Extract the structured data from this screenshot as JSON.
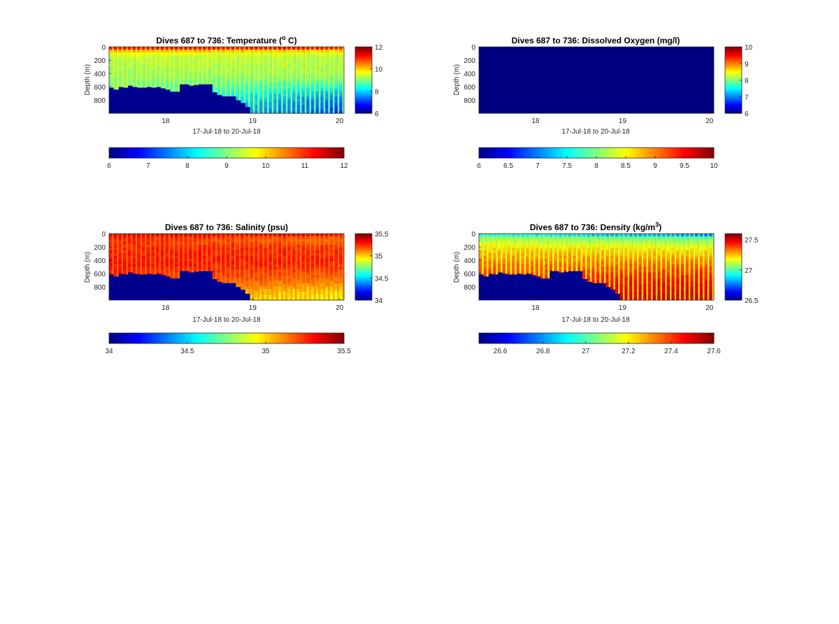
{
  "figure": {
    "colormap": "jet",
    "bottom_color": "#00008f"
  },
  "chart_data": [
    {
      "id": "temperature",
      "type": "heatmap",
      "title": "Dives 687 to 736: Temperature (° C)",
      "title_parts": [
        "Dives 687 to 736: Temperature (",
        "o",
        " C)"
      ],
      "xlabel": "17-Jul-18 to 20-Jul-18",
      "ylabel": "Depth (m)",
      "xlim": [
        17.35,
        20.05
      ],
      "ylim": [
        0,
        1000
      ],
      "y_reversed": true,
      "xticks": [
        18,
        19,
        20
      ],
      "xtick_labels": [
        "18",
        "19",
        "20"
      ],
      "yticks": [
        0,
        200,
        400,
        600,
        800
      ],
      "ytick_labels": [
        "0",
        "200",
        "400",
        "600",
        "800"
      ],
      "clim": [
        6,
        12
      ],
      "colorbar": {
        "ticks": [
          6,
          8,
          10,
          12
        ],
        "tick_labels": [
          "6",
          "8",
          "10",
          "12"
        ],
        "h_ticks": [
          6,
          7,
          8,
          9,
          10,
          11,
          12
        ],
        "h_tick_labels": [
          "6",
          "7",
          "8",
          "9",
          "10",
          "11",
          "12"
        ]
      },
      "n_dives": 50,
      "bottom_depth_m": [
        610,
        640,
        600,
        610,
        580,
        600,
        610,
        610,
        600,
        610,
        600,
        620,
        640,
        670,
        670,
        560,
        560,
        580,
        570,
        560,
        560,
        560,
        680,
        720,
        740,
        740,
        740,
        800,
        840,
        900,
        1000,
        1000,
        1000,
        1000,
        1000,
        1000,
        1000,
        1000,
        1000,
        1000,
        1000,
        1000,
        1000,
        1000,
        1000,
        1000,
        1000,
        1000,
        1000,
        1000
      ],
      "profile": {
        "depth_m": [
          0,
          25,
          50,
          100,
          150,
          200,
          300,
          400,
          500,
          600,
          700,
          800,
          900,
          1000
        ],
        "value_early": [
          11.6,
          11.2,
          10.4,
          9.7,
          9.4,
          9.3,
          9.2,
          9.1,
          9.0,
          9.0,
          8.9,
          8.8,
          8.7,
          8.7
        ],
        "value_late": [
          11.6,
          11.1,
          10.2,
          9.5,
          9.3,
          9.2,
          9.2,
          9.1,
          8.8,
          8.3,
          7.8,
          7.4,
          7.2,
          7.0
        ]
      },
      "gap_value": 9.7
    },
    {
      "id": "oxygen",
      "type": "heatmap",
      "title": "Dives 687 to 736: Dissolved Oxygen (mg/l)",
      "title_parts": [
        "Dives 687 to 736: Dissolved Oxygen (mg/l)"
      ],
      "xlabel": "17-Jul-18 to 20-Jul-18",
      "ylabel": "Depth (m)",
      "xlim": [
        17.35,
        20.05
      ],
      "ylim": [
        0,
        1000
      ],
      "y_reversed": true,
      "xticks": [
        18,
        19,
        20
      ],
      "xtick_labels": [
        "18",
        "19",
        "20"
      ],
      "yticks": [
        0,
        200,
        400,
        600,
        800
      ],
      "ytick_labels": [
        "0",
        "200",
        "400",
        "600",
        "800"
      ],
      "clim": [
        6,
        10
      ],
      "colorbar": {
        "ticks": [
          6,
          7,
          8,
          9,
          10
        ],
        "tick_labels": [
          "6",
          "7",
          "8",
          "9",
          "10"
        ],
        "h_ticks": [
          6,
          6.5,
          7,
          7.5,
          8,
          8.5,
          9,
          9.5,
          10
        ],
        "h_tick_labels": [
          "6",
          "6.5",
          "7",
          "7.5",
          "8",
          "8.5",
          "9",
          "9.5",
          "10"
        ]
      },
      "uniform_value": 6
    },
    {
      "id": "salinity",
      "type": "heatmap",
      "title": "Dives 687 to 736: Salinity (psu)",
      "title_parts": [
        "Dives 687 to 736: Salinity (psu)"
      ],
      "xlabel": "17-Jul-18 to 20-Jul-18",
      "ylabel": "Depth (m)",
      "xlim": [
        17.35,
        20.05
      ],
      "ylim": [
        0,
        1000
      ],
      "y_reversed": true,
      "xticks": [
        18,
        19,
        20
      ],
      "xtick_labels": [
        "18",
        "19",
        "20"
      ],
      "yticks": [
        0,
        200,
        400,
        600,
        800
      ],
      "ytick_labels": [
        "0",
        "200",
        "400",
        "600",
        "800"
      ],
      "clim": [
        34,
        35.5
      ],
      "colorbar": {
        "ticks": [
          34,
          34.5,
          35,
          35.5
        ],
        "tick_labels": [
          "34",
          "34.5",
          "35",
          "35.5"
        ],
        "h_ticks": [
          34,
          34.5,
          35,
          35.5
        ],
        "h_tick_labels": [
          "34",
          "34.5",
          "35",
          "35.5"
        ]
      },
      "n_dives": 50,
      "bottom_depth_m": [
        610,
        640,
        600,
        610,
        580,
        600,
        610,
        610,
        600,
        610,
        600,
        620,
        640,
        670,
        670,
        560,
        560,
        580,
        570,
        560,
        560,
        560,
        680,
        720,
        740,
        740,
        740,
        800,
        840,
        900,
        1000,
        1000,
        1000,
        1000,
        1000,
        1000,
        1000,
        1000,
        1000,
        1000,
        1000,
        1000,
        1000,
        1000,
        1000,
        1000,
        1000,
        1000,
        1000,
        1000
      ],
      "profile": {
        "depth_m": [
          0,
          25,
          50,
          100,
          150,
          200,
          300,
          400,
          500,
          600,
          700,
          800,
          900,
          1000
        ],
        "value_early": [
          35.4,
          35.35,
          35.3,
          35.28,
          35.27,
          35.27,
          35.28,
          35.3,
          35.3,
          35.28,
          35.25,
          35.2,
          35.15,
          35.1
        ],
        "value_late": [
          35.4,
          35.3,
          35.2,
          35.15,
          35.2,
          35.25,
          35.27,
          35.28,
          35.25,
          35.2,
          35.15,
          35.05,
          34.95,
          34.9
        ]
      },
      "gap_value": 35.1
    },
    {
      "id": "density",
      "type": "heatmap",
      "title": "Dives 687 to 736: Density (kg/m³)",
      "title_parts": [
        "Dives 687 to 736: Density (kg/m",
        "3",
        ")"
      ],
      "xlabel": "17-Jul-18 to 20-Jul-18",
      "ylabel": "Depth (m)",
      "xlim": [
        17.35,
        20.05
      ],
      "ylim": [
        0,
        1000
      ],
      "y_reversed": true,
      "xticks": [
        18,
        19,
        20
      ],
      "xtick_labels": [
        "18",
        "19",
        "20"
      ],
      "yticks": [
        0,
        200,
        400,
        600,
        800
      ],
      "ytick_labels": [
        "0",
        "200",
        "400",
        "600",
        "800"
      ],
      "clim": [
        26.5,
        27.6
      ],
      "colorbar": {
        "ticks": [
          26.5,
          27,
          27.5
        ],
        "tick_labels": [
          "26.5",
          "27",
          "27.5"
        ],
        "h_ticks": [
          26.6,
          26.8,
          27,
          27.2,
          27.4,
          27.6
        ],
        "h_tick_labels": [
          "26.6",
          "26.8",
          "27",
          "27.2",
          "27.4",
          "27.6"
        ]
      },
      "n_dives": 50,
      "bottom_depth_m": [
        610,
        640,
        600,
        610,
        580,
        600,
        610,
        610,
        600,
        610,
        600,
        620,
        640,
        670,
        670,
        560,
        560,
        580,
        570,
        560,
        560,
        560,
        680,
        720,
        740,
        740,
        740,
        800,
        840,
        900,
        1000,
        1000,
        1000,
        1000,
        1000,
        1000,
        1000,
        1000,
        1000,
        1000,
        1000,
        1000,
        1000,
        1000,
        1000,
        1000,
        1000,
        1000,
        1000,
        1000
      ],
      "profile": {
        "depth_m": [
          0,
          25,
          50,
          100,
          150,
          200,
          300,
          400,
          500,
          600,
          700,
          800,
          900,
          1000
        ],
        "value_early": [
          26.85,
          26.95,
          27.05,
          27.12,
          27.18,
          27.22,
          27.28,
          27.32,
          27.36,
          27.4,
          27.42,
          27.44,
          27.46,
          27.47
        ],
        "value_late": [
          26.6,
          26.8,
          26.95,
          27.05,
          27.12,
          27.18,
          27.26,
          27.32,
          27.38,
          27.43,
          27.47,
          27.5,
          27.52,
          27.53
        ]
      },
      "gap_value": 27.1
    }
  ]
}
